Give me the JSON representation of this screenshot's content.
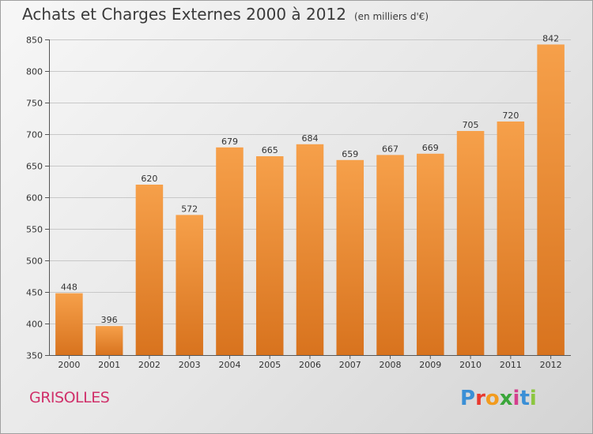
{
  "title": "Achats et Charges Externes 2000 à 2012",
  "unit_label": "(en milliers d'€)",
  "commune": "GRISOLLES",
  "brand": {
    "letters": [
      "P",
      "r",
      "o",
      "x",
      "i",
      "t",
      "i"
    ],
    "colors": [
      "#3a8fd6",
      "#e8392f",
      "#f29b1e",
      "#3aa63a",
      "#d43f8d",
      "#3a8fd6",
      "#8cc63f"
    ]
  },
  "colors": {
    "bar_top": "#f6a04a",
    "bar_bottom": "#d8731e",
    "title": "#3a3a3a",
    "commune": "#d0306a"
  },
  "chart_data": {
    "type": "bar",
    "categories": [
      "2000",
      "2001",
      "2002",
      "2003",
      "2004",
      "2005",
      "2006",
      "2007",
      "2008",
      "2009",
      "2010",
      "2011",
      "2012"
    ],
    "values": [
      448,
      396,
      620,
      572,
      679,
      665,
      684,
      659,
      667,
      669,
      705,
      720,
      842
    ],
    "ylim": [
      350,
      850
    ],
    "yticks": [
      350,
      400,
      450,
      500,
      550,
      600,
      650,
      700,
      750,
      800,
      850
    ],
    "grid": true,
    "data_labels": true
  }
}
